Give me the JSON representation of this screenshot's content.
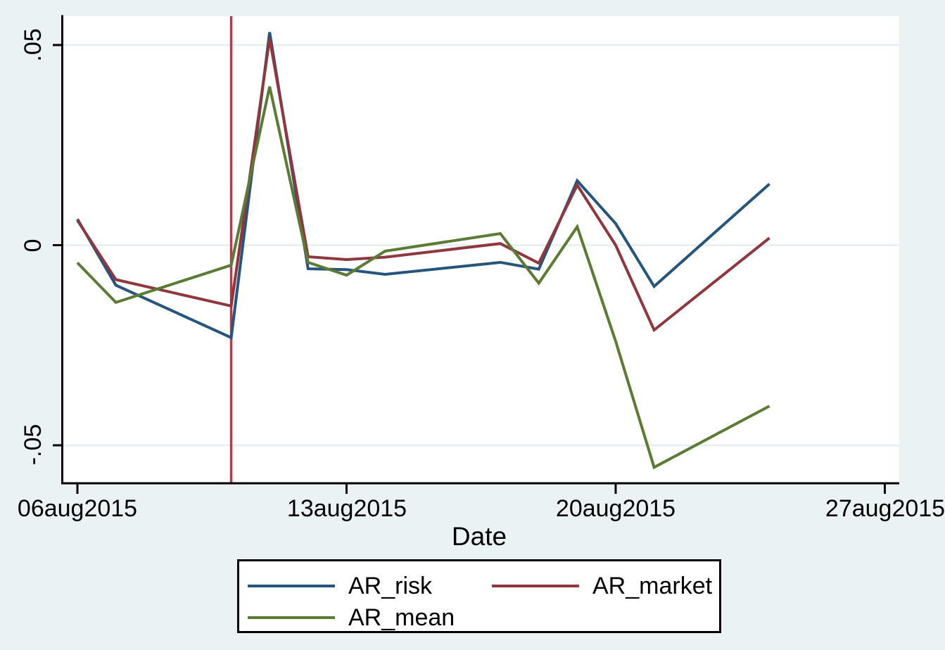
{
  "chart_data": {
    "type": "line",
    "xlabel": "Date",
    "x_dates": [
      "06aug2015",
      "07aug2015",
      "10aug2015",
      "11aug2015",
      "12aug2015",
      "13aug2015",
      "14aug2015",
      "17aug2015",
      "18aug2015",
      "19aug2015",
      "20aug2015",
      "21aug2015",
      "24aug2015"
    ],
    "x_day_offsets": [
      0,
      1,
      4,
      5,
      6,
      7,
      8,
      11,
      12,
      13,
      14,
      15,
      18
    ],
    "series": [
      {
        "name": "AR_risk",
        "color": "#27547d",
        "values": [
          0.0065,
          -0.01,
          -0.0231,
          0.0532,
          -0.0059,
          -0.0061,
          -0.0073,
          -0.0043,
          -0.006,
          0.0161,
          0.0054,
          -0.0103,
          0.0153
        ]
      },
      {
        "name": "AR_market",
        "color": "#8f373f",
        "values": [
          0.0062,
          -0.0086,
          -0.0152,
          0.0516,
          -0.0029,
          -0.0036,
          -0.003,
          0.0004,
          -0.0045,
          0.015,
          0.0,
          -0.0212,
          0.0018
        ]
      },
      {
        "name": "AR_mean",
        "color": "#5b7a33",
        "values": [
          -0.0044,
          -0.0143,
          -0.005,
          0.0396,
          -0.0043,
          -0.0075,
          -0.0015,
          0.0029,
          -0.0095,
          0.0046,
          -0.024,
          -0.0555,
          -0.0402
        ]
      }
    ],
    "event_line": {
      "date": "10aug2015",
      "day_offset": 4,
      "color": "#cb3144"
    },
    "yticks": [
      {
        "label": ".05",
        "value": 0.05
      },
      {
        "label": "0",
        "value": 0.0
      },
      {
        "label": "-.05",
        "value": -0.05
      }
    ],
    "xticks": [
      {
        "label": "06aug2015",
        "day_offset": 0
      },
      {
        "label": "13aug2015",
        "day_offset": 7
      },
      {
        "label": "20aug2015",
        "day_offset": 14
      },
      {
        "label": "27aug2015",
        "day_offset": 21
      }
    ],
    "ylim": [
      -0.0595,
      0.0572
    ],
    "xlim_days": [
      -0.37,
      21.37
    ],
    "grid": true,
    "legend_position": "bottom",
    "colors": {
      "background": "#eaf2f3",
      "plot_background": "#ffffff",
      "gridline": "#e4edf0",
      "axis": "#000000"
    }
  }
}
